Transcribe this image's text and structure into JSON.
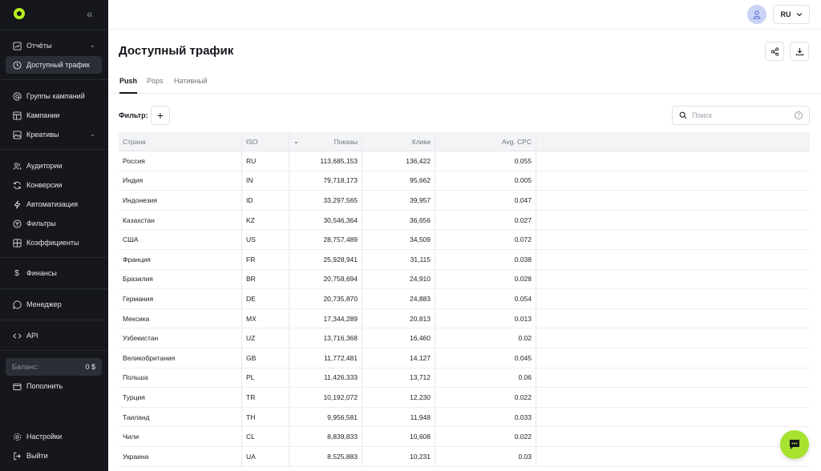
{
  "sidebar": {
    "items": [
      {
        "label": "Отчёты",
        "icon": "chart-icon"
      },
      {
        "label": "Доступный трафик",
        "icon": "clock-icon"
      },
      {
        "label": "Группы кампаний",
        "icon": "at-icon"
      },
      {
        "label": "Кампании",
        "icon": "layout-icon"
      },
      {
        "label": "Креативы",
        "icon": "image-icon"
      },
      {
        "label": "Аудитории",
        "icon": "users-icon"
      },
      {
        "label": "Конверсии",
        "icon": "refresh-icon"
      },
      {
        "label": "Автоматизация",
        "icon": "bolt-icon"
      },
      {
        "label": "Фильтры",
        "icon": "filter-icon"
      },
      {
        "label": "Коэффициенты",
        "icon": "grid-icon"
      },
      {
        "label": "Финансы",
        "icon": "dollar-icon"
      },
      {
        "label": "Менеджер",
        "icon": "chat-icon"
      },
      {
        "label": "API",
        "icon": "code-icon"
      },
      {
        "label": "Пополнить",
        "icon": "wallet-icon"
      },
      {
        "label": "Настройки",
        "icon": "gear-icon"
      },
      {
        "label": "Выйти",
        "icon": "logout-icon"
      }
    ],
    "balance_label": "Баланс:",
    "balance_value": "0 $"
  },
  "header": {
    "lang": "RU"
  },
  "page": {
    "title": "Доступный трафик"
  },
  "tabs": [
    {
      "label": "Push",
      "active": true
    },
    {
      "label": "Pops",
      "active": false
    },
    {
      "label": "Нативный",
      "active": false
    }
  ],
  "filter": {
    "label": "Фильтр:",
    "add": "+"
  },
  "search": {
    "placeholder": "Поиск",
    "help": "?"
  },
  "table": {
    "columns": {
      "country": "Страна",
      "iso": "ISO",
      "shows": "Показы",
      "clicks": "Клики",
      "cpc": "Avg. CPC"
    },
    "rows": [
      {
        "country": "Россия",
        "iso": "RU",
        "shows": "113,685,153",
        "clicks": "136,422",
        "cpc": "0.055"
      },
      {
        "country": "Индия",
        "iso": "IN",
        "shows": "79,718,173",
        "clicks": "95,662",
        "cpc": "0.005"
      },
      {
        "country": "Индонезия",
        "iso": "ID",
        "shows": "33,297,565",
        "clicks": "39,957",
        "cpc": "0.047"
      },
      {
        "country": "Казахстан",
        "iso": "KZ",
        "shows": "30,546,364",
        "clicks": "36,656",
        "cpc": "0.027"
      },
      {
        "country": "США",
        "iso": "US",
        "shows": "28,757,489",
        "clicks": "34,509",
        "cpc": "0.072"
      },
      {
        "country": "Франция",
        "iso": "FR",
        "shows": "25,928,941",
        "clicks": "31,115",
        "cpc": "0.038"
      },
      {
        "country": "Бразилия",
        "iso": "BR",
        "shows": "20,758,694",
        "clicks": "24,910",
        "cpc": "0.028"
      },
      {
        "country": "Германия",
        "iso": "DE",
        "shows": "20,735,870",
        "clicks": "24,883",
        "cpc": "0.054"
      },
      {
        "country": "Мексика",
        "iso": "MX",
        "shows": "17,344,289",
        "clicks": "20,813",
        "cpc": "0.013"
      },
      {
        "country": "Узбекистан",
        "iso": "UZ",
        "shows": "13,716,368",
        "clicks": "16,460",
        "cpc": "0.02"
      },
      {
        "country": "Великобритания",
        "iso": "GB",
        "shows": "11,772,481",
        "clicks": "14,127",
        "cpc": "0.045"
      },
      {
        "country": "Польша",
        "iso": "PL",
        "shows": "11,426,333",
        "clicks": "13,712",
        "cpc": "0.06"
      },
      {
        "country": "Турция",
        "iso": "TR",
        "shows": "10,192,072",
        "clicks": "12,230",
        "cpc": "0.022"
      },
      {
        "country": "Таиланд",
        "iso": "TH",
        "shows": "9,956,581",
        "clicks": "11,948",
        "cpc": "0.033"
      },
      {
        "country": "Чили",
        "iso": "CL",
        "shows": "8,839,833",
        "clicks": "10,608",
        "cpc": "0.022"
      },
      {
        "country": "Украина",
        "iso": "UA",
        "shows": "8,525,883",
        "clicks": "10,231",
        "cpc": "0.03"
      }
    ]
  }
}
